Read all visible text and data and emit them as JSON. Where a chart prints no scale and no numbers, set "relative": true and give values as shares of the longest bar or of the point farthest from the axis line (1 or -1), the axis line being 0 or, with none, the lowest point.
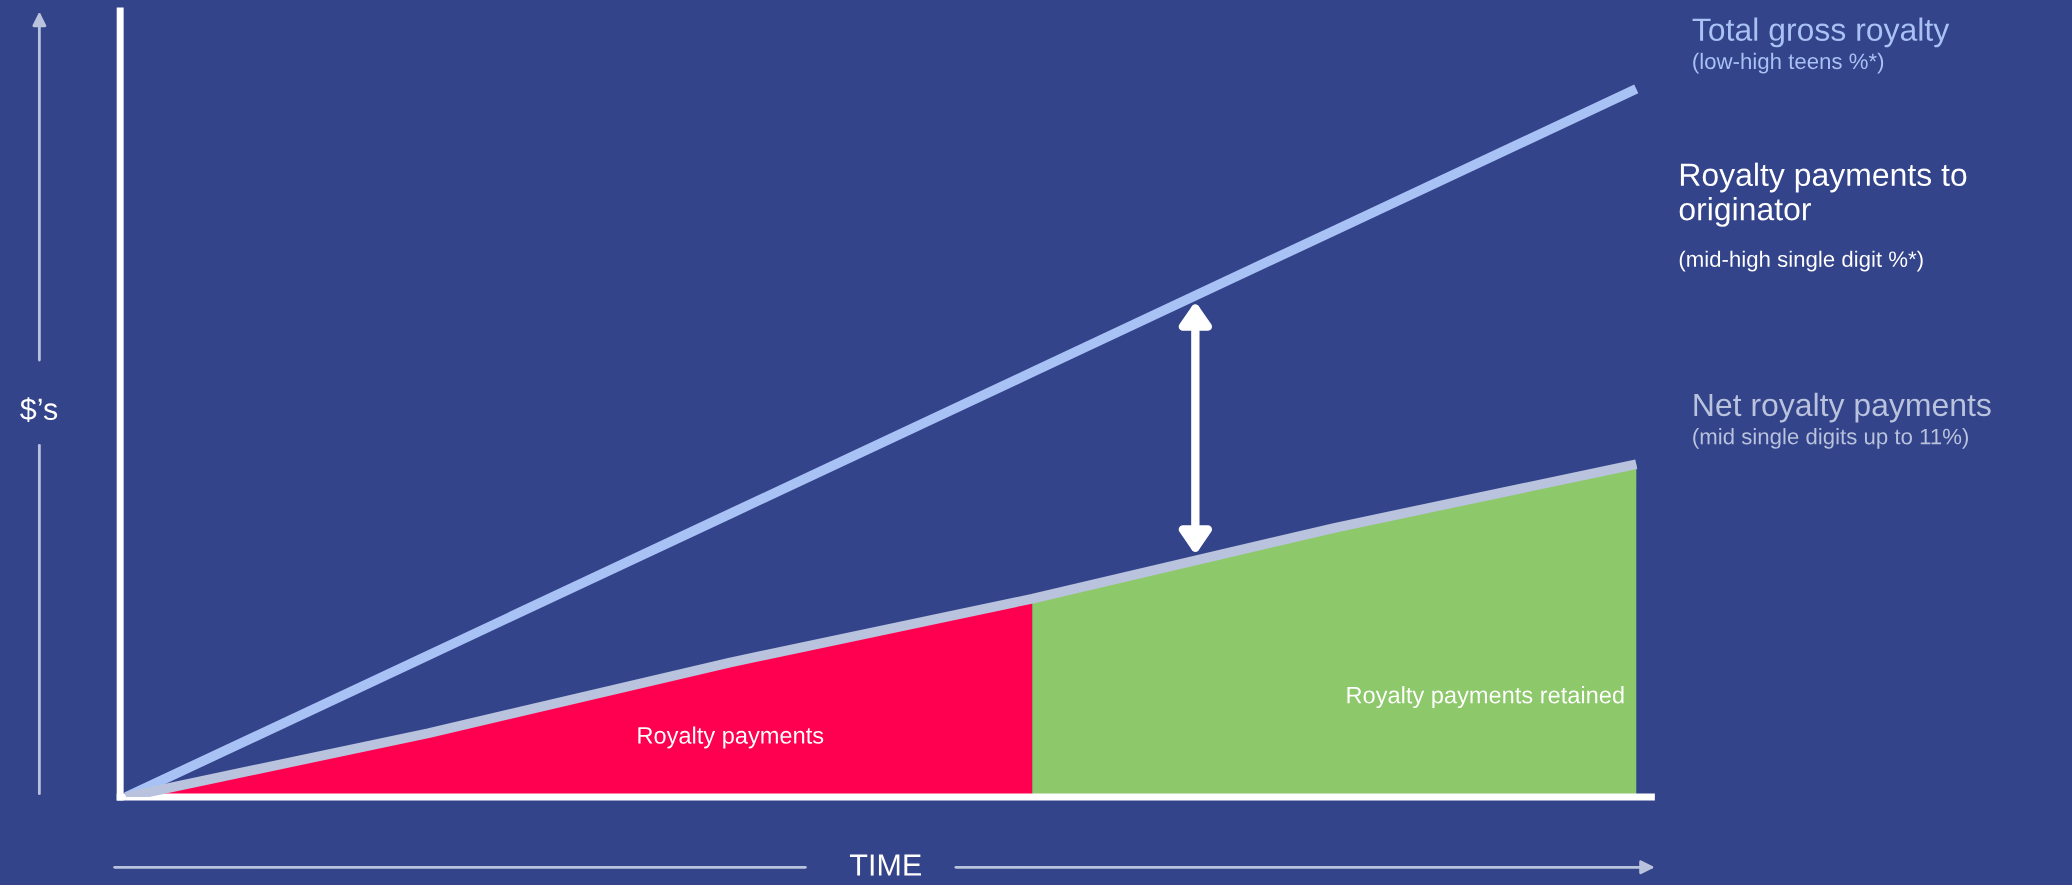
{
  "chart_data": {
    "type": "line",
    "relative": true,
    "categories": [
      null,
      null,
      null,
      null,
      null,
      null
    ],
    "xlabel": "TIME",
    "ylabel": "$’s",
    "tick_labels": false,
    "series": [
      {
        "name": "Total gross royalty",
        "color": "#a9c2f5",
        "values": [
          0,
          0.2,
          0.4,
          0.6,
          0.8,
          1
        ]
      },
      {
        "name": "Net royalty payments",
        "color": "#b9c3dd",
        "values": [
          0,
          0.09,
          0.19,
          0.28,
          0.38,
          0.47
        ]
      },
      {
        "name": "Royalty payments",
        "type": "area",
        "color": "#ff0050",
        "values": [
          0,
          0.09,
          0.19,
          0.28,
          null,
          null
        ]
      },
      {
        "name": "Royalty payments retained",
        "type": "area",
        "color": "#8dc86b",
        "values": [
          null,
          null,
          null,
          0.28,
          0.38,
          0.47
        ]
      }
    ],
    "annotations": [
      "(low-high teens %*)",
      "Royalty payments to originator",
      "(mid-high single digit %*)",
      "(mid single digits up to 11%)"
    ]
  }
}
